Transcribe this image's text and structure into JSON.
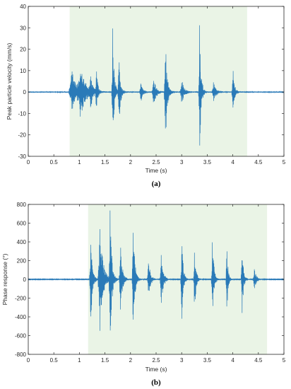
{
  "colors": {
    "signal": "#2a7ab8",
    "shade": "#eaf4e6",
    "axis": "#262626"
  },
  "chart_data": [
    {
      "type": "line",
      "panel_label": "(a)",
      "xlabel": "Time (s)",
      "ylabel": "Peak particle velocity (mm/s)",
      "xlim": [
        0,
        5
      ],
      "ylim": [
        -30,
        40
      ],
      "xticks": [
        0,
        0.5,
        1,
        1.5,
        2,
        2.5,
        3,
        3.5,
        4,
        4.5,
        5
      ],
      "xtick_labels": [
        "0",
        "0.5",
        "1",
        "1.5",
        "2",
        "2.5",
        "3",
        "3.5",
        "4",
        "4.5",
        "5"
      ],
      "yticks": [
        -30,
        -20,
        -10,
        0,
        10,
        20,
        30,
        40
      ],
      "ytick_labels": [
        "-30",
        "-20",
        "-10",
        "0",
        "10",
        "20",
        "30",
        "40"
      ],
      "shaded_interval": [
        0.81,
        4.28
      ],
      "grid": false,
      "series": [
        {
          "bursts": [
            {
              "t": 0.85,
              "amp": 11,
              "w": 0.18
            },
            {
              "t": 1.02,
              "amp": 12,
              "w": 0.2
            },
            {
              "t": 1.22,
              "amp": 8,
              "w": 0.08
            },
            {
              "t": 1.33,
              "amp": 13,
              "w": 0.05
            },
            {
              "t": 1.65,
              "amp": 30,
              "w": 0.06
            },
            {
              "t": 1.77,
              "amp": 20,
              "w": 0.06
            },
            {
              "t": 2.2,
              "amp": 5,
              "w": 0.08
            },
            {
              "t": 2.45,
              "amp": 7,
              "w": 0.1
            },
            {
              "t": 2.68,
              "amp": 28,
              "w": 0.07
            },
            {
              "t": 3.0,
              "amp": 6,
              "w": 0.1
            },
            {
              "t": 3.35,
              "amp": 33,
              "w": 0.06
            },
            {
              "t": 3.62,
              "amp": 5,
              "w": 0.1
            },
            {
              "t": 4.0,
              "amp": 13,
              "w": 0.06
            }
          ],
          "baseline_noise": 0.3
        }
      ]
    },
    {
      "type": "line",
      "panel_label": "(b)",
      "xlabel": "Time (s)",
      "ylabel": "Phase response (°)",
      "xlim": [
        0,
        5
      ],
      "ylim": [
        -800,
        800
      ],
      "xticks": [
        0,
        0.5,
        1,
        1.5,
        2,
        2.5,
        3,
        3.5,
        4,
        4.5,
        5
      ],
      "xtick_labels": [
        "0",
        "0.5",
        "1",
        "1.5",
        "2",
        "2.5",
        "3",
        "3.5",
        "4",
        "4.5",
        "5"
      ],
      "yticks": [
        -800,
        -600,
        -400,
        -200,
        0,
        200,
        400,
        600,
        800
      ],
      "ytick_labels": [
        "-800",
        "-600",
        "-400",
        "-200",
        "0",
        "200",
        "400",
        "600",
        "800"
      ],
      "shaded_interval": [
        1.17,
        4.67
      ],
      "grid": false,
      "series": [
        {
          "bursts": [
            {
              "t": 1.22,
              "amp": 500,
              "w": 0.07
            },
            {
              "t": 1.4,
              "amp": 650,
              "w": 0.12
            },
            {
              "t": 1.6,
              "amp": 780,
              "w": 0.07
            },
            {
              "t": 1.8,
              "amp": 420,
              "w": 0.08
            },
            {
              "t": 2.05,
              "amp": 600,
              "w": 0.07
            },
            {
              "t": 2.35,
              "amp": 220,
              "w": 0.08
            },
            {
              "t": 2.6,
              "amp": 300,
              "w": 0.08
            },
            {
              "t": 3.0,
              "amp": 530,
              "w": 0.06
            },
            {
              "t": 3.25,
              "amp": 420,
              "w": 0.06
            },
            {
              "t": 3.6,
              "amp": 500,
              "w": 0.06
            },
            {
              "t": 3.88,
              "amp": 470,
              "w": 0.05
            },
            {
              "t": 4.18,
              "amp": 420,
              "w": 0.06
            },
            {
              "t": 4.42,
              "amp": 120,
              "w": 0.08
            }
          ],
          "baseline_noise": 4
        }
      ]
    }
  ]
}
